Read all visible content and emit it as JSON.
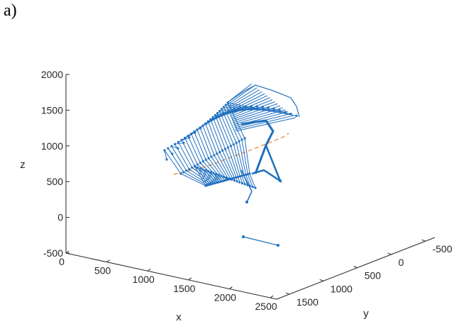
{
  "panel_label": "a)",
  "colors": {
    "axis": "#262626",
    "skeleton": "#1f6fbf",
    "trajectory": "#e8822a",
    "background": "#ffffff"
  },
  "chart_data": {
    "type": "line",
    "title": "",
    "xlabel": "x",
    "ylabel": "y",
    "zlabel": "z",
    "grid": false,
    "view": "3d",
    "z_axis": {
      "ticks": [
        -500,
        0,
        500,
        1000,
        1500,
        2000
      ],
      "tick_labels": [
        "-500",
        "0",
        "500",
        "1000",
        "1500",
        "2000"
      ]
    },
    "x_axis": {
      "ticks": [
        0,
        500,
        1000,
        1500,
        2000,
        2500
      ],
      "tick_labels": [
        "0",
        "500",
        "1000",
        "1500",
        "2000",
        "2500"
      ]
    },
    "y_axis": {
      "ticks": [
        1500,
        1000,
        500,
        0,
        -500
      ],
      "tick_labels": [
        "1500",
        "1000",
        "500",
        "0",
        "-500"
      ]
    },
    "series": [
      {
        "kind": "skeleton-frames",
        "color": "#1f6fbf",
        "frames": 24
      },
      {
        "kind": "trajectory",
        "color": "#e8822a",
        "style": "dashed"
      }
    ]
  }
}
